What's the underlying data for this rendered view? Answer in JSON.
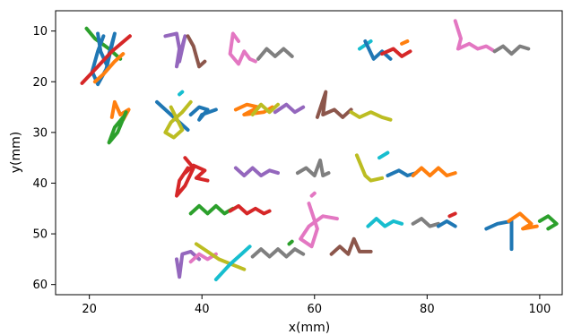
{
  "chart_data": {
    "type": "line",
    "title": "",
    "xlabel": "x(mm)",
    "ylabel": "y(mm)",
    "xlim": [
      14,
      104
    ],
    "ylim": [
      62,
      6
    ],
    "y_inverted": true,
    "grid": false,
    "xticks": [
      20,
      40,
      60,
      80,
      100
    ],
    "yticks": [
      10,
      20,
      30,
      40,
      50,
      60
    ],
    "xtick_labels": [
      "20",
      "40",
      "60",
      "80",
      "100"
    ],
    "ytick_labels": [
      "10",
      "20",
      "30",
      "40",
      "50",
      "60"
    ],
    "series": [
      {
        "color": "#2ca02c",
        "x": [
          19.5,
          21.0,
          23.5,
          25.5
        ],
        "y": [
          9.5,
          11.5,
          13.5,
          15.5
        ]
      },
      {
        "color": "#1f77b4",
        "x": [
          21.5,
          22.0,
          23.0,
          24.5,
          23.0,
          21.5,
          20.5,
          21.5,
          22.5
        ],
        "y": [
          10.5,
          14.0,
          16.5,
          10.5,
          17.5,
          20.5,
          18.0,
          14.0,
          11.0
        ]
      },
      {
        "color": "#ff7f0e",
        "x": [
          21.0,
          22.5,
          24.5,
          26.0
        ],
        "y": [
          20.0,
          18.5,
          16.0,
          14.5
        ]
      },
      {
        "color": "#d62728",
        "x": [
          18.7,
          21.5,
          24.0,
          27.2
        ],
        "y": [
          20.3,
          17.0,
          14.0,
          11.0
        ]
      },
      {
        "color": "#9467bd",
        "x": [
          33.5,
          35.5,
          36.0,
          35.5,
          37.0,
          36.0
        ],
        "y": [
          11.0,
          10.5,
          13.5,
          17.0,
          11.0,
          16.0
        ]
      },
      {
        "color": "#8c564b",
        "x": [
          37.5,
          38.5,
          39.0,
          39.5,
          40.5
        ],
        "y": [
          11.0,
          13.0,
          15.0,
          17.0,
          16.0
        ]
      },
      {
        "color": "#e377c2",
        "x": [
          46.5,
          45.5,
          45.0,
          46.5,
          47.5,
          48.5,
          49.5
        ],
        "y": [
          12.0,
          10.5,
          14.5,
          16.5,
          14.0,
          15.5,
          16.0
        ]
      },
      {
        "color": "#7f7f7f",
        "x": [
          50.0,
          51.5,
          53.0,
          54.5,
          56.0
        ],
        "y": [
          15.5,
          13.5,
          15.0,
          13.5,
          15.0
        ]
      },
      {
        "color": "#17becf",
        "x": [
          68.0,
          70.0
        ],
        "y": [
          13.5,
          12.0
        ]
      },
      {
        "color": "#1f77b4",
        "x": [
          69.0,
          70.5,
          72.0,
          73.5
        ],
        "y": [
          12.0,
          15.5,
          14.0,
          15.5
        ]
      },
      {
        "color": "#d62728",
        "x": [
          72.0,
          74.0,
          75.5,
          77.0
        ],
        "y": [
          14.5,
          13.5,
          15.0,
          14.0
        ]
      },
      {
        "color": "#ff7f0e",
        "x": [
          75.5,
          76.5
        ],
        "y": [
          12.5,
          12.0
        ]
      },
      {
        "color": "#e377c2",
        "x": [
          85.0,
          86.0,
          85.5,
          87.5,
          89.0,
          90.5,
          92.0
        ],
        "y": [
          8.0,
          11.5,
          13.5,
          12.5,
          13.5,
          13.0,
          14.0
        ]
      },
      {
        "color": "#7f7f7f",
        "x": [
          92.0,
          93.5,
          95.0,
          96.5,
          98.0
        ],
        "y": [
          14.0,
          13.0,
          14.5,
          13.0,
          13.5
        ]
      },
      {
        "color": "#ff7f0e",
        "x": [
          24.0,
          24.5,
          25.5,
          27.0,
          26.0
        ],
        "y": [
          27.0,
          24.0,
          26.5,
          25.5,
          27.5
        ]
      },
      {
        "color": "#2ca02c",
        "x": [
          26.5,
          25.0,
          23.5,
          24.5,
          26.0
        ],
        "y": [
          26.0,
          30.0,
          32.0,
          29.0,
          27.0
        ]
      },
      {
        "color": "#1f77b4",
        "x": [
          32.0,
          35.0,
          37.5
        ],
        "y": [
          24.0,
          27.0,
          29.5
        ]
      },
      {
        "color": "#bcbd22",
        "x": [
          34.5,
          36.5,
          35.0,
          33.5,
          34.5,
          36.5,
          38.0
        ],
        "y": [
          25.0,
          29.5,
          31.0,
          30.0,
          28.0,
          26.0,
          24.0
        ]
      },
      {
        "color": "#17becf",
        "x": [
          36.0,
          36.5
        ],
        "y": [
          22.5,
          22.0
        ]
      },
      {
        "color": "#1f77b4",
        "x": [
          38.0,
          39.5,
          41.0,
          39.5,
          40.0,
          42.5
        ],
        "y": [
          26.5,
          25.0,
          25.5,
          27.5,
          26.5,
          25.5
        ]
      },
      {
        "color": "#ff7f0e",
        "x": [
          46.0,
          48.0,
          50.0,
          47.5,
          51.0,
          52.5
        ],
        "y": [
          25.5,
          24.5,
          25.0,
          26.5,
          26.0,
          25.0
        ]
      },
      {
        "color": "#bcbd22",
        "x": [
          49.0,
          50.5,
          52.0,
          53.5
        ],
        "y": [
          26.5,
          24.5,
          26.0,
          24.5
        ]
      },
      {
        "color": "#9467bd",
        "x": [
          53.0,
          55.0,
          56.5,
          58.0
        ],
        "y": [
          26.0,
          24.5,
          26.0,
          25.0
        ]
      },
      {
        "color": "#8c564b",
        "x": [
          60.5,
          62.0,
          61.5,
          63.5,
          65.0,
          66.5
        ],
        "y": [
          27.0,
          22.0,
          26.5,
          25.5,
          27.0,
          25.5
        ]
      },
      {
        "color": "#bcbd22",
        "x": [
          66.5,
          68.0,
          70.0,
          72.0,
          73.5
        ],
        "y": [
          26.0,
          27.0,
          26.0,
          27.0,
          27.5
        ]
      },
      {
        "color": "#d62728",
        "x": [
          37.0,
          38.5,
          37.0,
          35.5,
          36.0,
          37.5
        ],
        "y": [
          35.0,
          37.0,
          40.5,
          42.5,
          39.5,
          37.0
        ]
      },
      {
        "color": "#d62728",
        "x": [
          37.0,
          38.5,
          40.5,
          39.0,
          41.0
        ],
        "y": [
          38.0,
          36.5,
          37.5,
          39.0,
          39.5
        ]
      },
      {
        "color": "#9467bd",
        "x": [
          46.0,
          47.5,
          49.0,
          50.5,
          52.0,
          53.5
        ],
        "y": [
          37.0,
          38.5,
          37.0,
          38.5,
          37.5,
          38.0
        ]
      },
      {
        "color": "#7f7f7f",
        "x": [
          57.0,
          58.5,
          60.0,
          61.0,
          61.5,
          62.5
        ],
        "y": [
          38.0,
          37.0,
          38.5,
          35.5,
          38.5,
          38.0
        ]
      },
      {
        "color": "#bcbd22",
        "x": [
          67.5,
          69.0,
          70.0,
          72.0
        ],
        "y": [
          34.5,
          38.5,
          39.5,
          39.0
        ]
      },
      {
        "color": "#17becf",
        "x": [
          71.5,
          73.0
        ],
        "y": [
          35.0,
          34.0
        ]
      },
      {
        "color": "#1f77b4",
        "x": [
          73.0,
          75.0,
          76.5,
          78.0
        ],
        "y": [
          38.5,
          37.5,
          38.5,
          38.0
        ]
      },
      {
        "color": "#ff7f0e",
        "x": [
          77.5,
          79.0,
          80.5,
          82.0,
          83.5,
          85.0
        ],
        "y": [
          38.5,
          37.0,
          38.5,
          37.0,
          38.5,
          38.0
        ]
      },
      {
        "color": "#2ca02c",
        "x": [
          38.0,
          39.5,
          41.0,
          42.5,
          44.0,
          45.5
        ],
        "y": [
          46.0,
          44.5,
          46.0,
          44.5,
          46.0,
          45.0
        ]
      },
      {
        "color": "#d62728",
        "x": [
          45.0,
          46.5,
          48.0,
          49.5,
          51.0,
          52.0
        ],
        "y": [
          45.5,
          44.5,
          46.0,
          45.0,
          46.0,
          45.5
        ]
      },
      {
        "color": "#e377c2",
        "x": [
          59.0,
          60.5,
          59.5,
          57.5,
          59.0,
          61.5,
          64.0
        ],
        "y": [
          44.0,
          49.0,
          52.5,
          51.0,
          48.5,
          46.5,
          47.0
        ]
      },
      {
        "color": "#e377c2",
        "x": [
          59.5,
          60.0
        ],
        "y": [
          42.5,
          42.0
        ]
      },
      {
        "color": "#17becf",
        "x": [
          69.5,
          71.0,
          72.5,
          74.0,
          75.5
        ],
        "y": [
          48.5,
          47.0,
          48.5,
          47.5,
          48.0
        ]
      },
      {
        "color": "#7f7f7f",
        "x": [
          77.5,
          79.0,
          80.5,
          82.0
        ],
        "y": [
          48.0,
          47.0,
          48.5,
          48.0
        ]
      },
      {
        "color": "#1f77b4",
        "x": [
          82.0,
          83.5,
          85.0
        ],
        "y": [
          48.5,
          47.5,
          48.5
        ]
      },
      {
        "color": "#d62728",
        "x": [
          84.0,
          85.0
        ],
        "y": [
          46.5,
          46.0
        ]
      },
      {
        "color": "#1f77b4",
        "x": [
          90.5,
          92.5,
          95.0,
          95.0
        ],
        "y": [
          49.0,
          48.0,
          47.5,
          53.0
        ]
      },
      {
        "color": "#ff7f0e",
        "x": [
          94.5,
          96.5,
          98.5,
          97.0,
          99.5
        ],
        "y": [
          47.5,
          46.0,
          48.0,
          49.0,
          48.5
        ]
      },
      {
        "color": "#2ca02c",
        "x": [
          100.0,
          101.5,
          103.0,
          101.5
        ],
        "y": [
          47.5,
          46.5,
          48.0,
          49.0
        ]
      },
      {
        "color": "#9467bd",
        "x": [
          35.5,
          36.0,
          36.5,
          38.0,
          39.5
        ],
        "y": [
          55.0,
          58.5,
          54.0,
          53.5,
          55.0
        ]
      },
      {
        "color": "#e377c2",
        "x": [
          38.0,
          39.5,
          41.0,
          42.5
        ],
        "y": [
          55.5,
          54.0,
          55.0,
          54.0
        ]
      },
      {
        "color": "#bcbd22",
        "x": [
          39.0,
          43.0,
          47.5
        ],
        "y": [
          52.0,
          55.0,
          57.0
        ]
      },
      {
        "color": "#17becf",
        "x": [
          42.5,
          45.0,
          47.0,
          48.5
        ],
        "y": [
          59.0,
          56.0,
          54.0,
          52.5
        ]
      },
      {
        "color": "#7f7f7f",
        "x": [
          49.0,
          50.5,
          52.0,
          53.5,
          55.0,
          56.5,
          58.0
        ],
        "y": [
          54.5,
          53.0,
          54.5,
          53.0,
          54.5,
          53.0,
          54.0
        ]
      },
      {
        "color": "#2ca02c",
        "x": [
          55.5,
          56.0
        ],
        "y": [
          52.0,
          51.5
        ]
      },
      {
        "color": "#8c564b",
        "x": [
          63.0,
          64.5,
          66.0,
          67.0,
          68.0,
          70.0
        ],
        "y": [
          54.0,
          52.5,
          54.0,
          51.0,
          53.5,
          53.5
        ]
      }
    ]
  }
}
